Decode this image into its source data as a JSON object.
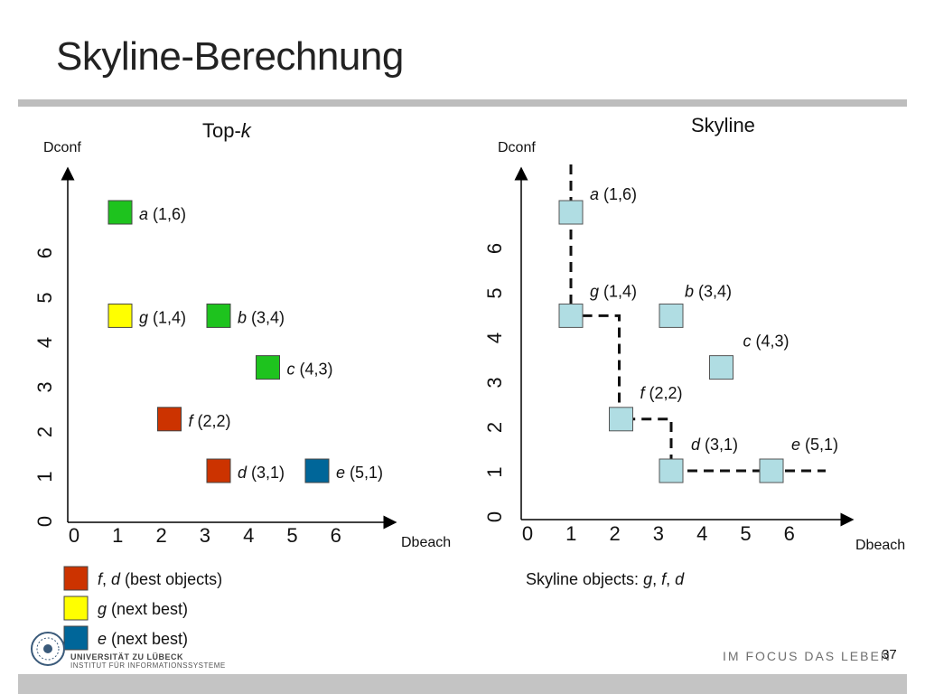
{
  "slide": {
    "title": "Skyline-Berechnung",
    "number": "37",
    "motto": "IM FOCUS DAS LEBEN",
    "logo_line1": "UNIVERSITÄT ZU LÜBECK",
    "logo_line2": "INSTITUT FÜR INFORMATIONSSYSTEME"
  },
  "left_panel": {
    "heading_prefix": "Top-",
    "heading_italic": "k",
    "y_label": "Dconf",
    "x_label": "Dbeach",
    "x_ticks": [
      "0",
      "1",
      "2",
      "3",
      "4",
      "5",
      "6"
    ],
    "y_ticks": [
      "0",
      "1",
      "2",
      "3",
      "4",
      "5",
      "6"
    ],
    "points": [
      {
        "id": "a",
        "coords": "(1,6)",
        "color": "#1ec31e"
      },
      {
        "id": "g",
        "coords": "(1,4)",
        "color": "#ffff00"
      },
      {
        "id": "b",
        "coords": "(3,4)",
        "color": "#1ec31e"
      },
      {
        "id": "c",
        "coords": "(4,3)",
        "color": "#1ec31e"
      },
      {
        "id": "f",
        "coords": "(2,2)",
        "color": "#cc3300"
      },
      {
        "id": "d",
        "coords": "(3,1)",
        "color": "#cc3300"
      },
      {
        "id": "e",
        "coords": "(5,1)",
        "color": "#006699"
      }
    ],
    "legend": [
      {
        "color": "#cc3300",
        "parts": [
          {
            "t": "f",
            "i": true
          },
          {
            "t": ", ",
            "i": false
          },
          {
            "t": "d",
            "i": true
          },
          {
            "t": " (best objects)",
            "i": false
          }
        ]
      },
      {
        "color": "#ffff00",
        "parts": [
          {
            "t": "g",
            "i": true
          },
          {
            "t": " (next best)",
            "i": false
          }
        ]
      },
      {
        "color": "#006699",
        "parts": [
          {
            "t": "e",
            "i": true
          },
          {
            "t": " (next best)",
            "i": false
          }
        ]
      }
    ]
  },
  "right_panel": {
    "heading": "Skyline",
    "y_label": "Dconf",
    "x_label": "Dbeach",
    "x_ticks": [
      "0",
      "1",
      "2",
      "3",
      "4",
      "5",
      "6"
    ],
    "y_ticks": [
      "0",
      "1",
      "2",
      "3",
      "4",
      "5",
      "6"
    ],
    "point_color": "#b0dde3",
    "points": [
      {
        "id": "a",
        "coords": "(1,6)"
      },
      {
        "id": "g",
        "coords": "(1,4)"
      },
      {
        "id": "b",
        "coords": "(3,4)"
      },
      {
        "id": "c",
        "coords": "(4,3)"
      },
      {
        "id": "f",
        "coords": "(2,2)"
      },
      {
        "id": "d",
        "coords": "(3,1)"
      },
      {
        "id": "e",
        "coords": "(5,1)"
      }
    ],
    "caption_parts": [
      {
        "t": "Skyline objects: ",
        "i": false
      },
      {
        "t": "g",
        "i": true
      },
      {
        "t": ", ",
        "i": false
      },
      {
        "t": "f",
        "i": true
      },
      {
        "t": ", ",
        "i": false
      },
      {
        "t": "d",
        "i": true
      }
    ]
  }
}
